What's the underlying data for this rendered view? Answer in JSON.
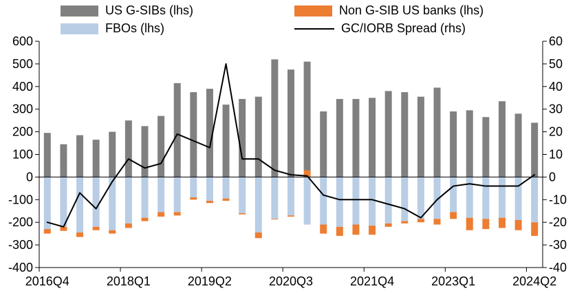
{
  "colors": {
    "gsib": "#808080",
    "fbo": "#b9cde5",
    "non_gsib": "#ed7d31",
    "line": "#000000",
    "axis": "#000000"
  },
  "legend": {
    "gsib": "US G-SIBs (lhs)",
    "fbo": "FBOs (lhs)",
    "non_gsib": "Non G-SIB US banks (lhs)",
    "spread": "GC/IORB Spread (rhs)"
  },
  "chart_data": {
    "type": "bar",
    "subtype": "stacked-bars-with-line",
    "categories": [
      "2016Q4",
      "2017Q1",
      "2017Q2",
      "2017Q3",
      "2017Q4",
      "2018Q1",
      "2018Q2",
      "2018Q3",
      "2018Q4",
      "2019Q1",
      "2019Q2",
      "2019Q3",
      "2019Q4",
      "2020Q1",
      "2020Q2",
      "2020Q3",
      "2020Q4",
      "2021Q1",
      "2021Q2",
      "2021Q3",
      "2021Q4",
      "2022Q1",
      "2022Q2",
      "2022Q3",
      "2022Q4",
      "2023Q1",
      "2023Q2",
      "2023Q3",
      "2023Q4",
      "2024Q1",
      "2024Q2"
    ],
    "x_tick_labels": [
      "2016Q4",
      "2018Q1",
      "2019Q2",
      "2020Q3",
      "2021Q4",
      "2023Q1",
      "2024Q2"
    ],
    "series": [
      {
        "name": "US G-SIBs (lhs)",
        "type": "bar",
        "axis": "left",
        "color_key": "gsib",
        "values": [
          195,
          145,
          185,
          165,
          200,
          250,
          225,
          270,
          415,
          375,
          390,
          320,
          345,
          355,
          520,
          475,
          480,
          290,
          345,
          345,
          350,
          380,
          375,
          355,
          395,
          290,
          295,
          265,
          335,
          280,
          240
        ]
      },
      {
        "name": "FBOs (lhs)",
        "type": "bar",
        "axis": "left",
        "color_key": "fbo",
        "values": [
          -230,
          -220,
          -245,
          -220,
          -235,
          -205,
          -180,
          -155,
          -155,
          -90,
          -105,
          -95,
          -160,
          -245,
          -185,
          -170,
          -210,
          -210,
          -220,
          -210,
          -215,
          -205,
          -195,
          -185,
          -185,
          -155,
          -180,
          -185,
          -180,
          -190,
          -200
        ]
      },
      {
        "name": "Non G-SIB US banks (lhs)",
        "type": "bar",
        "axis": "left",
        "color_key": "non_gsib",
        "values": [
          -20,
          -18,
          -20,
          -15,
          -15,
          -20,
          -15,
          -20,
          -15,
          -10,
          -10,
          -10,
          -5,
          -25,
          -3,
          -5,
          30,
          -40,
          -40,
          -45,
          -40,
          -15,
          -10,
          -15,
          -25,
          -30,
          -55,
          -45,
          -45,
          -45,
          -60
        ]
      },
      {
        "name": "GC/IORB Spread (rhs)",
        "type": "line",
        "axis": "right",
        "color_key": "line",
        "values": [
          -20,
          -22,
          -7,
          -14,
          -2,
          8,
          4,
          6,
          19,
          16,
          13,
          50,
          8,
          8,
          3,
          1,
          0.5,
          -8,
          -10,
          -10,
          -10,
          -12,
          -14,
          -18,
          -10,
          -4,
          -3,
          -4,
          -4,
          -4,
          1
        ]
      }
    ],
    "left_axis": {
      "min": -400,
      "max": 600,
      "step": 100
    },
    "right_axis": {
      "min": -40,
      "max": 60,
      "step": 10
    },
    "grid": false,
    "legend_position": "top"
  }
}
